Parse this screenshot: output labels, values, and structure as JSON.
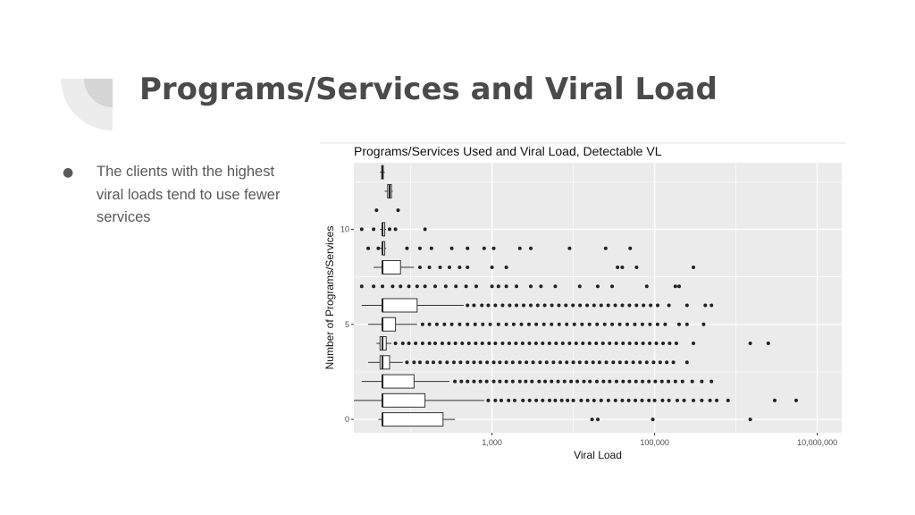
{
  "slide": {
    "title": "Programs/Services and Viral Load",
    "bullet_marker": "●",
    "bullets": [
      "The clients with the highest viral loads tend to use fewer services"
    ]
  },
  "colors": {
    "panel_bg": "#ebebeb",
    "grid": "#ffffff",
    "points": "#222222",
    "title_text": "#4a4a4a",
    "body_text": "#595959"
  },
  "chart_data": {
    "type": "boxplot",
    "title": "Programs/Services Used and Viral Load, Detectable VL",
    "xlabel": "Viral Load",
    "ylabel": "Number of Programs/Services",
    "x_scale": "log10",
    "xlim": [
      20,
      20000000
    ],
    "ylim": [
      -0.7,
      13.5
    ],
    "x_ticks": [
      {
        "value": 1000,
        "label": "1,000"
      },
      {
        "value": 100000,
        "label": "100,000"
      },
      {
        "value": 10000000,
        "label": "10,000,000"
      }
    ],
    "y_ticks": [
      {
        "value": 0,
        "label": "0"
      },
      {
        "value": 5,
        "label": "5"
      },
      {
        "value": 10,
        "label": "10"
      }
    ],
    "grid": true,
    "boxes": [
      {
        "y": 0,
        "whisker_low": 40,
        "q1": 45,
        "median": 45,
        "q3": 250,
        "whisker_high": 350
      },
      {
        "y": 1,
        "whisker_low": 20,
        "q1": 45,
        "median": 45,
        "q3": 150,
        "whisker_high": 800
      },
      {
        "y": 2,
        "whisker_low": 25,
        "q1": 45,
        "median": 45,
        "q3": 110,
        "whisker_high": 300
      },
      {
        "y": 3,
        "whisker_low": 30,
        "q1": 42,
        "median": 45,
        "q3": 55,
        "whisker_high": 80
      },
      {
        "y": 4,
        "whisker_low": 38,
        "q1": 42,
        "median": 45,
        "q3": 50,
        "whisker_high": 58
      },
      {
        "y": 5,
        "whisker_low": 30,
        "q1": 45,
        "median": 45,
        "q3": 65,
        "whisker_high": 120
      },
      {
        "y": 6,
        "whisker_low": 25,
        "q1": 45,
        "median": 45,
        "q3": 120,
        "whisker_high": 450
      },
      {
        "y": 8,
        "whisker_low": 35,
        "q1": 45,
        "median": 45,
        "q3": 75,
        "whisker_high": 110
      },
      {
        "y": 9,
        "whisker_low": 42,
        "q1": 45,
        "median": 45,
        "q3": 48,
        "whisker_high": 50
      },
      {
        "y": 10,
        "whisker_low": 42,
        "q1": 45,
        "median": 45,
        "q3": 48,
        "whisker_high": 50
      },
      {
        "y": 12,
        "whisker_low": 48,
        "q1": 52,
        "median": 55,
        "q3": 58,
        "whisker_high": 60
      },
      {
        "y": 13,
        "whisker_low": 42,
        "q1": 44,
        "median": 45,
        "q3": 46,
        "whisker_high": 48
      }
    ],
    "outliers": [
      {
        "y": 0,
        "x": [
          17000,
          20000,
          95000,
          1500000
        ]
      },
      {
        "y": 1,
        "x": [
          900,
          1100,
          1300,
          1600,
          1900,
          2400,
          2900,
          3500,
          4200,
          5100,
          6000,
          7200,
          8500,
          10000,
          12500,
          15000,
          18000,
          22000,
          27000,
          33000,
          40000,
          48000,
          58000,
          70000,
          85000,
          100000,
          125000,
          150000,
          190000,
          230000,
          300000,
          380000,
          480000,
          580000,
          800000,
          3000000,
          5500000
        ]
      },
      {
        "y": 2,
        "x": [
          350,
          420,
          500,
          600,
          720,
          860,
          1050,
          1250,
          1500,
          1800,
          2200,
          2600,
          3100,
          3800,
          4500,
          5400,
          6500,
          7800,
          9400,
          11200,
          13500,
          16000,
          19500,
          23500,
          28000,
          34000,
          41000,
          49000,
          59000,
          71000,
          85000,
          102000,
          123000,
          148000,
          180000,
          220000,
          290000,
          380000,
          500000
        ]
      },
      {
        "y": 3,
        "x": [
          90,
          110,
          130,
          160,
          190,
          230,
          280,
          340,
          410,
          500,
          600,
          720,
          870,
          1050,
          1250,
          1500,
          1800,
          2200,
          2650,
          3200,
          3900,
          4700,
          5700,
          6900,
          8300,
          10000,
          12000,
          14500,
          17500,
          21000,
          25500,
          31000,
          37500,
          45000,
          54500,
          66000,
          80000,
          97000,
          117000,
          141000,
          170000,
          250000
        ]
      },
      {
        "y": 4,
        "x": [
          65,
          80,
          95,
          115,
          140,
          170,
          200,
          245,
          295,
          355,
          430,
          520,
          630,
          760,
          920,
          1100,
          1350,
          1630,
          1970,
          2380,
          2880,
          3480,
          4200,
          5080,
          6140,
          7420,
          8970,
          10840,
          13100,
          15830,
          19130,
          23120,
          27940,
          33760,
          40800,
          49300,
          59580,
          72000,
          87000,
          105000,
          127000,
          153000,
          185000,
          300000,
          1500000,
          2500000
        ]
      },
      {
        "y": 5,
        "x": [
          140,
          170,
          210,
          260,
          320,
          400,
          500,
          620,
          770,
          950,
          1200,
          1500,
          1850,
          2300,
          2850,
          3500,
          4350,
          5400,
          6700,
          8300,
          10300,
          12800,
          15800,
          19600,
          24300,
          30000,
          37200,
          46100,
          57100,
          70800,
          87700,
          108700,
          134700,
          200000,
          250000,
          400000
        ]
      },
      {
        "y": 6,
        "x": [
          500,
          600,
          750,
          900,
          1100,
          1350,
          1650,
          2000,
          2450,
          3000,
          3650,
          4450,
          5450,
          6650,
          8100,
          9900,
          12100,
          14800,
          18000,
          22000,
          26900,
          32800,
          40100,
          49000,
          59800,
          73000,
          89200,
          109000,
          150000,
          250000,
          420000,
          500000
        ]
      },
      {
        "y": 7,
        "x": [
          25,
          35,
          45,
          60,
          75,
          95,
          120,
          150,
          200,
          270,
          360,
          480,
          640,
          1000,
          1200,
          1500,
          2000,
          3000,
          4000,
          6000,
          12000,
          20000,
          30000,
          80000,
          180000,
          200000
        ]
      },
      {
        "y": 8,
        "x": [
          130,
          170,
          230,
          300,
          400,
          500,
          1000,
          1500,
          35000,
          40000,
          60000,
          300000
        ]
      },
      {
        "y": 9,
        "x": [
          30,
          40,
          90,
          130,
          180,
          320,
          500,
          800,
          1050,
          2200,
          3000,
          9000,
          25000,
          50000
        ]
      },
      {
        "y": 10,
        "x": [
          25,
          35,
          55,
          65,
          150
        ]
      },
      {
        "y": 11,
        "x": [
          38,
          70
        ]
      },
      {
        "y": 12,
        "x": []
      },
      {
        "y": 13,
        "x": []
      }
    ]
  }
}
